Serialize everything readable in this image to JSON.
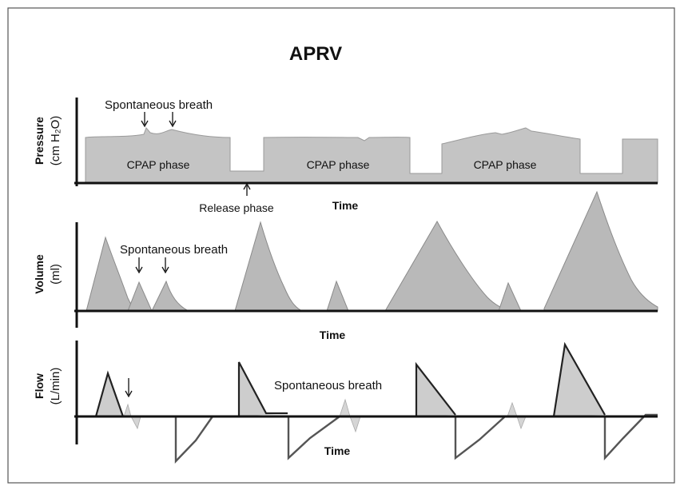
{
  "title": "APRV",
  "panels": {
    "pressure": {
      "y_label": "Pressure",
      "y_unit": "(cm H₂O)",
      "x_label": "Time",
      "annotations": {
        "spontaneous": "Spontaneous breath",
        "release": "Release phase"
      },
      "phases": [
        "CPAP phase",
        "CPAP phase",
        "CPAP phase"
      ]
    },
    "volume": {
      "y_label": "Volume",
      "y_unit": "(ml)",
      "x_label": "Time",
      "annotations": {
        "spontaneous": "Spontaneous breath"
      }
    },
    "flow": {
      "y_label": "Flow",
      "y_unit": "(L/min)",
      "x_label": "Time",
      "annotations": {
        "spontaneous": "Spontaneous breath"
      }
    }
  }
}
